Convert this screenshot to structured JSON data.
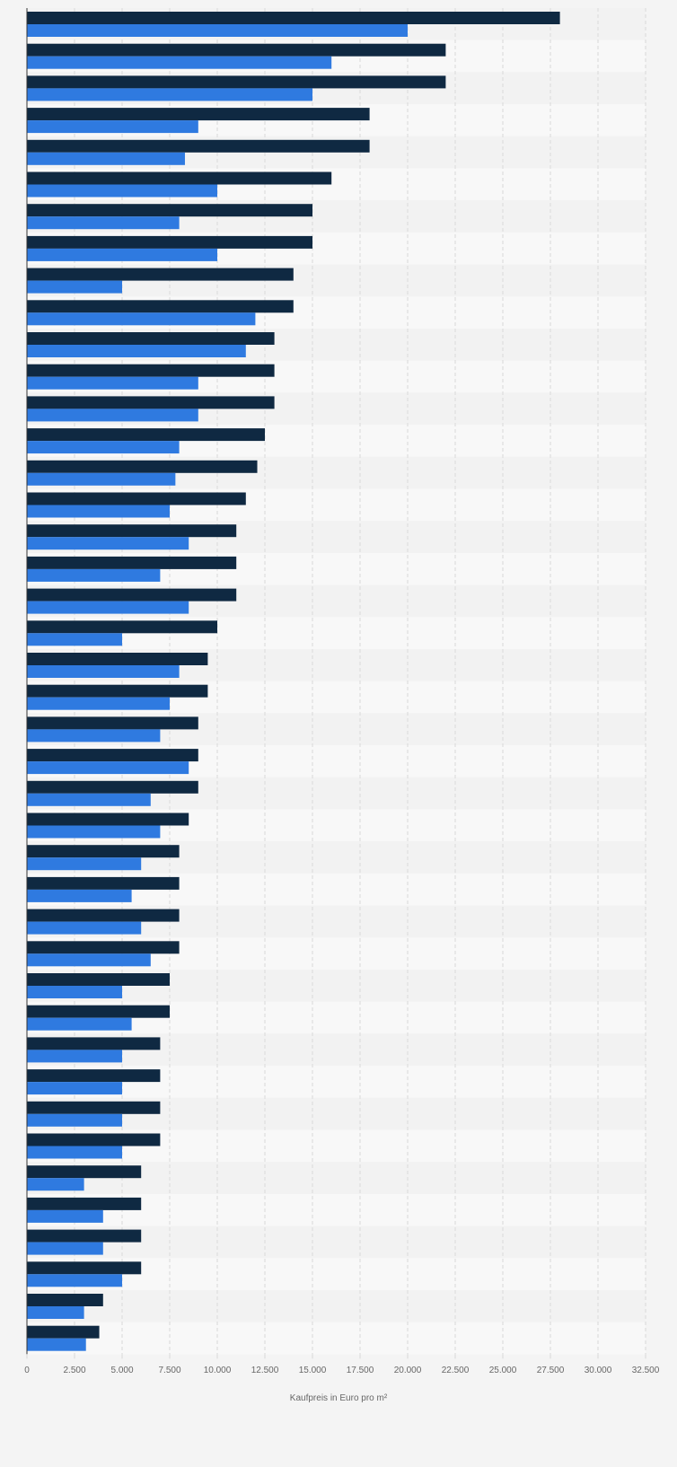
{
  "chart_data": {
    "type": "bar",
    "orientation": "horizontal",
    "xlabel": "Kaufpreis in Euro pro m²",
    "xlim": [
      0,
      32500
    ],
    "xticks": [
      0,
      2500,
      5000,
      7500,
      10000,
      12500,
      15000,
      17500,
      20000,
      22500,
      25000,
      27500,
      30000,
      32500
    ],
    "xtick_labels": [
      "0",
      "2.500",
      "5.000",
      "7.500",
      "10.000",
      "12.500",
      "15.000",
      "17.500",
      "20.000",
      "22.500",
      "25.000",
      "27.500",
      "30.000",
      "32.500"
    ],
    "grid": true,
    "series": [
      {
        "color": "#0f2942",
        "values": [
          28000,
          22000,
          22000,
          18000,
          18000,
          16000,
          15000,
          15000,
          14000,
          14000,
          13000,
          13000,
          13000,
          12500,
          12100,
          11500,
          11000,
          11000,
          11000,
          10000,
          9500,
          9500,
          9000,
          9000,
          9000,
          8500,
          8000,
          8000,
          8000,
          8000,
          7500,
          7500,
          7000,
          7000,
          7000,
          7000,
          6000,
          6000,
          6000,
          6000,
          4000,
          3800
        ]
      },
      {
        "color": "#2f7ae0",
        "values": [
          20000,
          16000,
          15000,
          9000,
          8300,
          10000,
          8000,
          10000,
          5000,
          12000,
          11500,
          9000,
          9000,
          8000,
          7800,
          7500,
          8500,
          7000,
          8500,
          5000,
          8000,
          7500,
          7000,
          8500,
          6500,
          7000,
          6000,
          5500,
          6000,
          6500,
          5000,
          5500,
          5000,
          5000,
          5000,
          5000,
          3000,
          4000,
          4000,
          5000,
          3000,
          3100
        ]
      }
    ]
  },
  "colors": {
    "background": "#f4f4f4",
    "band_dark": "#f2f2f2",
    "band_light": "#f8f8f8",
    "grid": "#d9d9d9",
    "axis": "#333333",
    "tick_label": "#666666"
  }
}
